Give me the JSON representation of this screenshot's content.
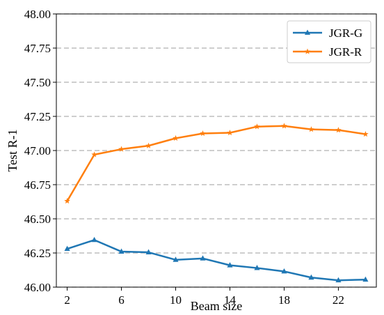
{
  "chart_data": {
    "type": "line",
    "title": "",
    "xlabel": "Beam size",
    "ylabel": "Test R-1",
    "xlim": [
      1.2,
      24.8
    ],
    "ylim": [
      46.0,
      48.0
    ],
    "xticks": [
      2,
      6,
      10,
      14,
      18,
      22
    ],
    "yticks": [
      46.0,
      46.25,
      46.5,
      46.75,
      47.0,
      47.25,
      47.5,
      47.75,
      48.0
    ],
    "ytick_labels": [
      "46.00",
      "46.25",
      "46.50",
      "46.75",
      "47.00",
      "47.25",
      "47.50",
      "47.75",
      "48.00"
    ],
    "grid": "horizontal dashed",
    "legend_position": "top-right",
    "x": [
      2,
      4,
      6,
      8,
      10,
      12,
      14,
      16,
      18,
      20,
      22,
      24
    ],
    "series": [
      {
        "name": "JGR-G",
        "color": "#1f77b4",
        "marker": "triangle",
        "values": [
          46.28,
          46.345,
          46.26,
          46.255,
          46.2,
          46.21,
          46.16,
          46.14,
          46.115,
          46.07,
          46.05,
          46.055
        ]
      },
      {
        "name": "JGR-R",
        "color": "#ff7f0e",
        "marker": "star",
        "values": [
          46.63,
          46.97,
          47.01,
          47.035,
          47.09,
          47.125,
          47.13,
          47.175,
          47.18,
          47.155,
          47.15,
          47.12
        ]
      }
    ]
  }
}
